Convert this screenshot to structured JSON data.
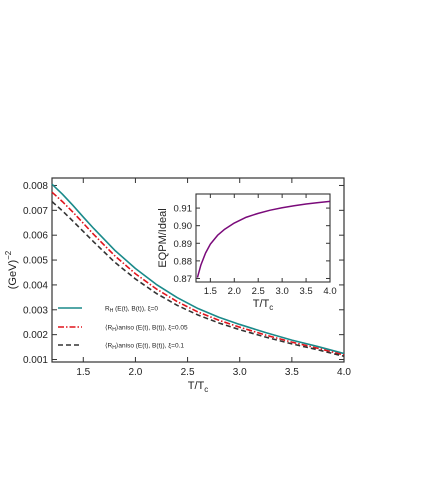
{
  "chart_data": [
    {
      "type": "line",
      "xlabel": "T/T",
      "xlabel_sub": "c",
      "ylabel": "(GeV)",
      "ylabel_sup": "−2",
      "xlim": [
        1.2,
        4.0
      ],
      "ylim": [
        0.0009,
        0.0083
      ],
      "xticks": [
        1.5,
        2.0,
        2.5,
        3.0,
        3.5,
        4.0
      ],
      "xtick_labels": [
        "1.5",
        "2.0",
        "2.5",
        "3.0",
        "3.5",
        "4.0"
      ],
      "yticks": [
        0.001,
        0.002,
        0.003,
        0.004,
        0.005,
        0.006,
        0.007,
        0.008
      ],
      "ytick_labels": [
        "0.001",
        "0.002",
        "0.003",
        "0.004",
        "0.005",
        "0.006",
        "0.007",
        "0.008"
      ],
      "grid": false,
      "legend_position": "bottom-left",
      "x": [
        1.2,
        1.3,
        1.4,
        1.5,
        1.6,
        1.8,
        2.0,
        2.2,
        2.4,
        2.6,
        2.8,
        3.0,
        3.25,
        3.5,
        3.75,
        4.0
      ],
      "series": [
        {
          "name": "R",
          "name_sub": "H",
          "name_rest": " (E(t), B(t)), ξ=0",
          "color": "#1a8a8a",
          "dash": "solid",
          "values": [
            0.00805,
            0.00765,
            0.0072,
            0.00673,
            0.00627,
            0.0054,
            0.00466,
            0.00402,
            0.00349,
            0.00305,
            0.0027,
            0.00241,
            0.00208,
            0.00178,
            0.00152,
            0.00124
          ]
        },
        {
          "name": "⟨R",
          "name_sub": "H",
          "name_rest": "⟩aniso (E(t), B(t)), ξ=0.05",
          "color": "#e0141c",
          "dash": "dashdot",
          "values": [
            0.00773,
            0.00735,
            0.00693,
            0.00648,
            0.00603,
            0.00518,
            0.00445,
            0.00384,
            0.00333,
            0.00291,
            0.00258,
            0.0023,
            0.00198,
            0.0017,
            0.00145,
            0.00118
          ]
        },
        {
          "name": "⟨R",
          "name_sub": "H",
          "name_rest": "⟩aniso (E(t), B(t)), ξ=0.1",
          "color": "#333333",
          "dash": "dashed",
          "values": [
            0.00735,
            0.00698,
            0.00657,
            0.00615,
            0.00573,
            0.00492,
            0.00424,
            0.00366,
            0.00318,
            0.00279,
            0.00247,
            0.0022,
            0.0019,
            0.00163,
            0.00139,
            0.00113
          ]
        }
      ]
    },
    {
      "type": "line",
      "xlabel": "T/T",
      "xlabel_sub": "c",
      "ylabel": "EQPM/Ideal",
      "xlim": [
        1.2,
        4.0
      ],
      "ylim": [
        0.868,
        0.918
      ],
      "xticks": [
        1.5,
        2.0,
        2.5,
        3.0,
        3.5,
        4.0
      ],
      "xtick_labels": [
        "1.5",
        "2.0",
        "2.5",
        "3.0",
        "3.5",
        "4.0"
      ],
      "yticks": [
        0.87,
        0.88,
        0.89,
        0.9,
        0.91
      ],
      "ytick_labels": [
        "0.87",
        "0.88",
        "0.89",
        "0.90",
        "0.91"
      ],
      "grid": false,
      "x": [
        1.23,
        1.3,
        1.4,
        1.5,
        1.65,
        1.8,
        2.0,
        2.25,
        2.5,
        2.75,
        3.0,
        3.25,
        3.5,
        3.75,
        4.0
      ],
      "series": [
        {
          "color": "#7a0a7a",
          "values": [
            0.8705,
            0.8775,
            0.8845,
            0.8895,
            0.8945,
            0.898,
            0.9015,
            0.9048,
            0.907,
            0.9088,
            0.9102,
            0.9113,
            0.9123,
            0.9131,
            0.9138
          ]
        }
      ]
    }
  ]
}
